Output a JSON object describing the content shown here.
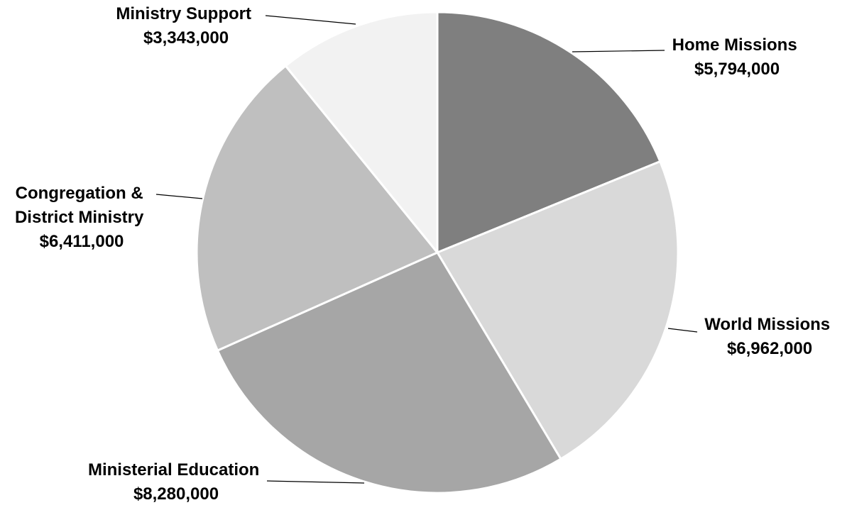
{
  "chart_data": {
    "type": "pie",
    "title": "",
    "legend": "none",
    "start": "top",
    "direction": "clockwise",
    "slices": [
      {
        "name": "Home Missions",
        "label_lines": [
          "Home Missions"
        ],
        "value_text": "$5,794,000",
        "value": 5794000,
        "color": "#7f7f7f"
      },
      {
        "name": "World Missions",
        "label_lines": [
          "World Missions"
        ],
        "value_text": "$6,962,000",
        "value": 6962000,
        "color": "#d9d9d9"
      },
      {
        "name": "Ministerial Education",
        "label_lines": [
          "Ministerial Education"
        ],
        "value_text": "$8,280,000",
        "value": 8280000,
        "color": "#a6a6a6"
      },
      {
        "name": "Congregation & District Ministry",
        "label_lines": [
          "Congregation &",
          "District Ministry"
        ],
        "value_text": "$6,411,000",
        "value": 6411000,
        "color": "#bfbfbf"
      },
      {
        "name": "Ministry Support",
        "label_lines": [
          "Ministry Support"
        ],
        "value_text": "$3,343,000",
        "value": 3343000,
        "color": "#f2f2f2"
      }
    ]
  }
}
